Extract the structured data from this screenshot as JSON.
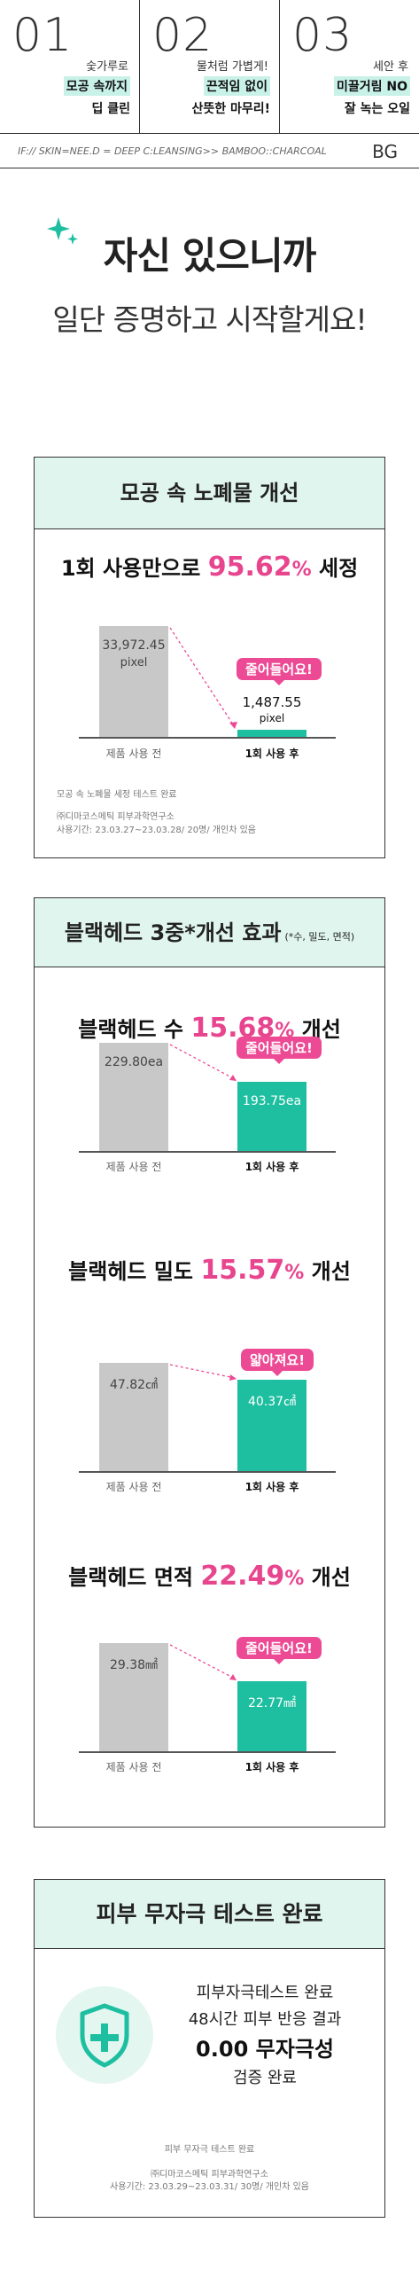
{
  "features": [
    {
      "num": "01",
      "desc": "숯가루로",
      "highlight": "모공 속까지",
      "last": "딥 클린"
    },
    {
      "num": "02",
      "desc": "물처럼 가볍게!",
      "highlight": "끈적임 없이",
      "last": "산뜻한 마무리!"
    },
    {
      "num": "03",
      "desc": "세안 후",
      "highlight": "미끌거림 NO",
      "last": "잘 녹는 오일"
    }
  ],
  "formula": "IF:// SKIN=NEE.D = DEEP C:LEANSING>> BAMBOO::CHARCOAL",
  "brand_mark": "BG",
  "hero": {
    "title": "자신 있으니까",
    "subtitle": "일단 증명하고 시작할게요!"
  },
  "card1": {
    "title": "모공 속 노폐물 개선",
    "stat_prefix": "1회 사용만으로 ",
    "stat_pct": "95.62",
    "stat_pct_unit": "%",
    "stat_suffix": " 세정",
    "before_value": "33,972.45",
    "before_unit": "pixel",
    "after_value": "1,487.55",
    "after_unit": "pixel",
    "badge": "줄어들어요!",
    "label_before": "제품 사용 전",
    "label_after": "1회 사용 후",
    "note1": "모공 속 노폐물 세정 테스트 완료",
    "note2": "㈜디마코스메틱 피부과학연구소",
    "note3": "사용기간: 23.03.27~23.03.28/ 20명/ 개인차 있음"
  },
  "card2": {
    "title": "블랙헤드 3중*개선 효과",
    "title_note": "(*수, 밀도, 면적)",
    "label_before": "제품 사용 전",
    "label_after": "1회 사용 후",
    "charts": [
      {
        "prefix": "블랙헤드 수 ",
        "pct": "15.68",
        "unit": "%",
        "suffix": " 개선",
        "before": "229.80ea",
        "after": "193.75ea",
        "badge": "줄어들어요!"
      },
      {
        "prefix": "블랙헤드 밀도 ",
        "pct": "15.57",
        "unit": "%",
        "suffix": " 개선",
        "before": "47.82㎠",
        "after": "40.37㎠",
        "badge": "얇아져요!"
      },
      {
        "prefix": "블랙헤드 면적 ",
        "pct": "22.49",
        "unit": "%",
        "suffix": " 개선",
        "before": "29.38㎟",
        "after": "22.77㎟",
        "badge": "줄어들어요!"
      }
    ]
  },
  "card3": {
    "title": "피부 무자극 테스트 완료",
    "line1": "피부자극테스트 완료",
    "line2": "48시간 피부 반응 결과",
    "line3": "0.00 무자극성",
    "line4": "검증 완료",
    "note1": "피부 무자극 테스트 완료",
    "note2": "㈜디마코스메틱 피부과학연구소",
    "note3": "사용기간: 23.03.29~23.03.31/ 30명/ 개인차 있음"
  },
  "colors": {
    "accent_pink": "#ec4a94",
    "accent_teal": "#1ebfa0",
    "header_mint": "#e1f5ef",
    "bar_grey": "#c8c8c8"
  },
  "icons": {
    "sparkle": "sparkle-icon",
    "shield": "shield-plus-icon"
  }
}
